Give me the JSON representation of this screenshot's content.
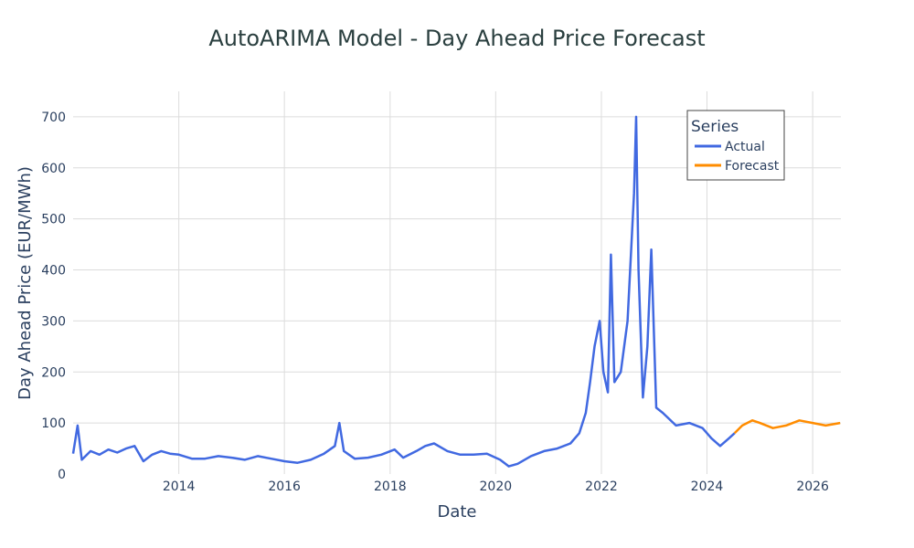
{
  "chart_data": {
    "type": "line",
    "title": "AutoARIMA Model - Day Ahead Price Forecast",
    "xlabel": "Date",
    "ylabel": "Day Ahead Price (EUR/MWh)",
    "xlim": [
      "2012-01-01",
      "2026-07-15"
    ],
    "ylim": [
      0,
      750
    ],
    "x_ticks": [
      "2014",
      "2016",
      "2018",
      "2020",
      "2022",
      "2024",
      "2026"
    ],
    "y_ticks": [
      0,
      100,
      200,
      300,
      400,
      500,
      600,
      700
    ],
    "grid": true,
    "legend": {
      "title": "Series",
      "position": "top-right"
    },
    "series": [
      {
        "name": "Actual",
        "color": "#4169e1",
        "points": [
          [
            "2012-01-01",
            40
          ],
          [
            "2012-02-01",
            95
          ],
          [
            "2012-03-01",
            28
          ],
          [
            "2012-05-01",
            45
          ],
          [
            "2012-07-01",
            38
          ],
          [
            "2012-09-01",
            48
          ],
          [
            "2012-11-01",
            42
          ],
          [
            "2013-01-01",
            50
          ],
          [
            "2013-03-01",
            55
          ],
          [
            "2013-05-01",
            25
          ],
          [
            "2013-07-01",
            38
          ],
          [
            "2013-09-01",
            45
          ],
          [
            "2013-11-01",
            40
          ],
          [
            "2014-01-01",
            38
          ],
          [
            "2014-04-01",
            30
          ],
          [
            "2014-07-01",
            30
          ],
          [
            "2014-10-01",
            35
          ],
          [
            "2015-01-01",
            32
          ],
          [
            "2015-04-01",
            28
          ],
          [
            "2015-07-01",
            35
          ],
          [
            "2015-10-01",
            30
          ],
          [
            "2016-01-01",
            25
          ],
          [
            "2016-04-01",
            22
          ],
          [
            "2016-07-01",
            28
          ],
          [
            "2016-10-01",
            40
          ],
          [
            "2016-12-15",
            55
          ],
          [
            "2017-01-15",
            100
          ],
          [
            "2017-02-15",
            45
          ],
          [
            "2017-05-01",
            30
          ],
          [
            "2017-08-01",
            32
          ],
          [
            "2017-11-01",
            38
          ],
          [
            "2018-02-01",
            48
          ],
          [
            "2018-04-01",
            32
          ],
          [
            "2018-07-01",
            45
          ],
          [
            "2018-09-01",
            55
          ],
          [
            "2018-11-01",
            60
          ],
          [
            "2019-02-01",
            45
          ],
          [
            "2019-05-01",
            38
          ],
          [
            "2019-08-01",
            38
          ],
          [
            "2019-11-01",
            40
          ],
          [
            "2020-02-01",
            28
          ],
          [
            "2020-04-01",
            15
          ],
          [
            "2020-06-01",
            20
          ],
          [
            "2020-09-01",
            35
          ],
          [
            "2020-12-01",
            45
          ],
          [
            "2021-03-01",
            50
          ],
          [
            "2021-06-01",
            60
          ],
          [
            "2021-08-01",
            80
          ],
          [
            "2021-09-15",
            120
          ],
          [
            "2021-10-15",
            180
          ],
          [
            "2021-11-15",
            250
          ],
          [
            "2021-12-20",
            300
          ],
          [
            "2022-01-15",
            200
          ],
          [
            "2022-02-15",
            160
          ],
          [
            "2022-03-08",
            430
          ],
          [
            "2022-04-01",
            180
          ],
          [
            "2022-05-15",
            200
          ],
          [
            "2022-07-01",
            300
          ],
          [
            "2022-08-15",
            550
          ],
          [
            "2022-08-29",
            700
          ],
          [
            "2022-09-15",
            400
          ],
          [
            "2022-10-15",
            150
          ],
          [
            "2022-11-15",
            250
          ],
          [
            "2022-12-12",
            440
          ],
          [
            "2023-01-15",
            130
          ],
          [
            "2023-03-01",
            120
          ],
          [
            "2023-06-01",
            95
          ],
          [
            "2023-09-01",
            100
          ],
          [
            "2023-12-01",
            90
          ],
          [
            "2024-02-01",
            70
          ],
          [
            "2024-04-01",
            55
          ],
          [
            "2024-06-01",
            70
          ],
          [
            "2024-07-10",
            80
          ]
        ]
      },
      {
        "name": "Forecast",
        "color": "#ff8c00",
        "points": [
          [
            "2024-07-10",
            80
          ],
          [
            "2024-09-01",
            95
          ],
          [
            "2024-11-10",
            105
          ],
          [
            "2025-01-01",
            100
          ],
          [
            "2025-04-01",
            90
          ],
          [
            "2025-07-01",
            95
          ],
          [
            "2025-10-01",
            105
          ],
          [
            "2026-01-01",
            100
          ],
          [
            "2026-04-01",
            95
          ],
          [
            "2026-07-10",
            100
          ]
        ]
      }
    ]
  }
}
